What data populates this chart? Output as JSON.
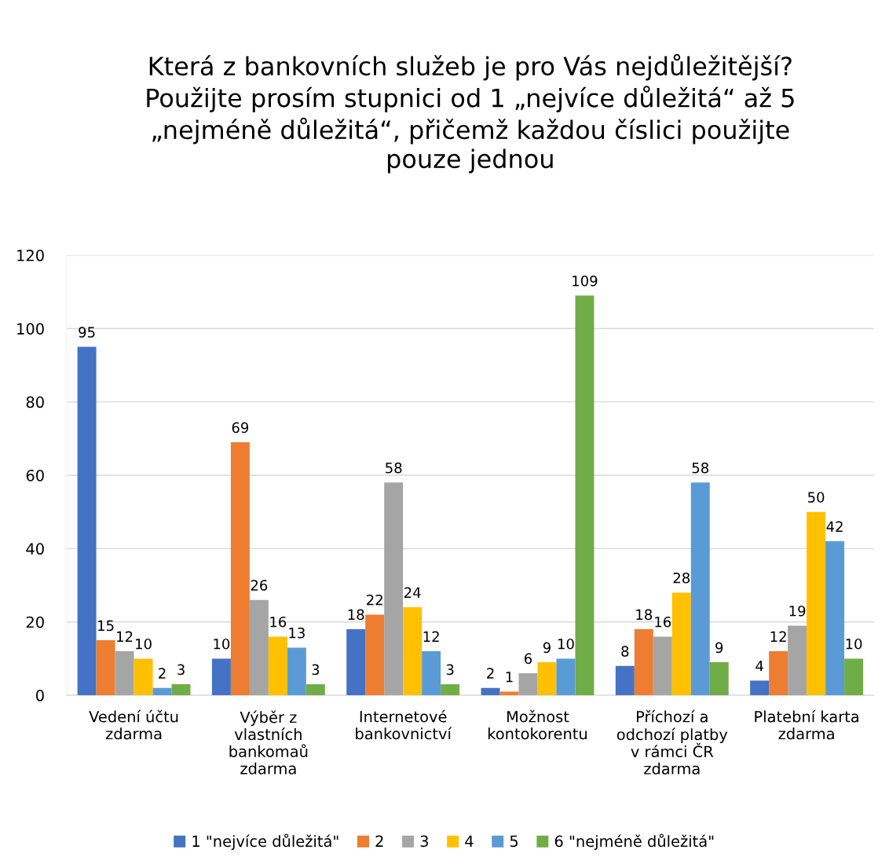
{
  "chart_data": {
    "type": "bar",
    "title": "Která z bankovních služeb je pro Vás nejdůležitější?\nPoužijte prosím stupnici od 1 „nejvíce důležitá“ až 5\n„nejméně důležitá“, přičemž každou číslici použijte\npouze jednou",
    "categories": [
      "Vedení účtu\nzdarma",
      "Výběr z\nvlastních\nbankomaů\nzdarma",
      "Internetové\nbankovnictví",
      "Možnost\nkontokorentu",
      "Příchozí a\nodchozí platby\nv rámci ČR\nzdarma",
      "Platební karta\nzdarma"
    ],
    "series": [
      {
        "name": "1 \"nejvíce důležitá\"",
        "color": "#4472c4",
        "values": [
          95,
          10,
          18,
          2,
          8,
          4
        ]
      },
      {
        "name": "2",
        "color": "#ed7d31",
        "values": [
          15,
          69,
          22,
          1,
          18,
          12
        ]
      },
      {
        "name": "3",
        "color": "#a5a5a5",
        "values": [
          12,
          26,
          58,
          6,
          16,
          19
        ]
      },
      {
        "name": "4",
        "color": "#ffc000",
        "values": [
          10,
          16,
          24,
          9,
          28,
          50
        ]
      },
      {
        "name": "5",
        "color": "#5b9bd5",
        "values": [
          2,
          13,
          12,
          10,
          58,
          42
        ]
      },
      {
        "name": "6 \"nejméně důležitá\"",
        "color": "#70ad47",
        "values": [
          3,
          3,
          3,
          109,
          9,
          10
        ]
      }
    ],
    "ylim": [
      0,
      120
    ],
    "yticks": [
      0,
      20,
      40,
      60,
      80,
      100,
      120
    ],
    "grid": "y",
    "legend": "bottom",
    "data_labels": true
  }
}
